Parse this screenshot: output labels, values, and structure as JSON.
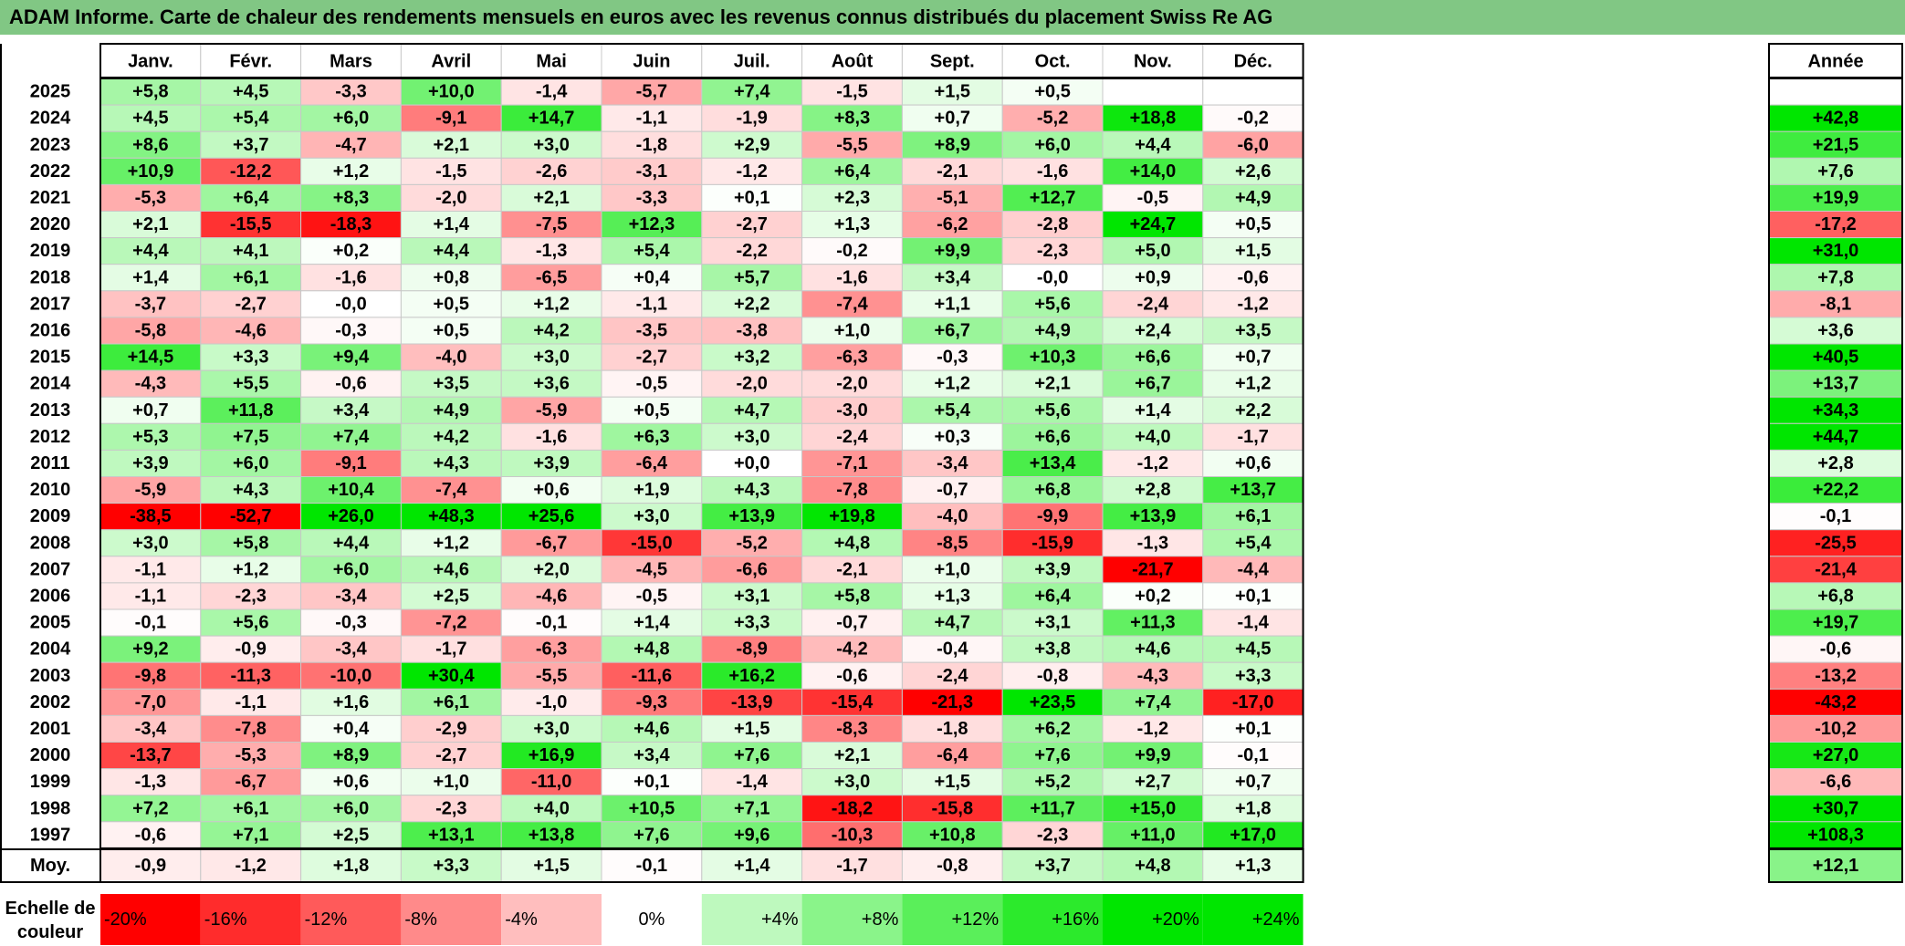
{
  "title": "ADAM Informe. Carte de chaleur des rendements mensuels en euros avec les revenus connus distribués du placement Swiss Re AG",
  "colors": {
    "title_bg": "#81c784",
    "negative_max": "#ff0000",
    "neutral": "#ffffff",
    "positive_max": "#00e000",
    "grid": "#c8c8c8",
    "border": "#000000"
  },
  "chart_data": {
    "type": "heatmap",
    "months": [
      "Janv.",
      "Févr.",
      "Mars",
      "Avril",
      "Mai",
      "Juin",
      "Juil.",
      "Août",
      "Sept.",
      "Oct.",
      "Nov.",
      "Déc."
    ],
    "year_header": "Année",
    "rows": [
      {
        "year": "2025",
        "values": [
          "+5,8",
          "+4,5",
          "-3,3",
          "+10,0",
          "-1,4",
          "-5,7",
          "+7,4",
          "-1,5",
          "+1,5",
          "+0,5",
          "",
          ""
        ],
        "annual": ""
      },
      {
        "year": "2024",
        "values": [
          "+4,5",
          "+5,4",
          "+6,0",
          "-9,1",
          "+14,7",
          "-1,1",
          "-1,9",
          "+8,3",
          "+0,7",
          "-5,2",
          "+18,8",
          "-0,2"
        ],
        "annual": "+42,8"
      },
      {
        "year": "2023",
        "values": [
          "+8,6",
          "+3,7",
          "-4,7",
          "+2,1",
          "+3,0",
          "-1,8",
          "+2,9",
          "-5,5",
          "+8,9",
          "+6,0",
          "+4,4",
          "-6,0"
        ],
        "annual": "+21,5"
      },
      {
        "year": "2022",
        "values": [
          "+10,9",
          "-12,2",
          "+1,2",
          "-1,5",
          "-2,6",
          "-3,1",
          "-1,2",
          "+6,4",
          "-2,1",
          "-1,6",
          "+14,0",
          "+2,6"
        ],
        "annual": "+7,6"
      },
      {
        "year": "2021",
        "values": [
          "-5,3",
          "+6,4",
          "+8,3",
          "-2,0",
          "+2,1",
          "-3,3",
          "+0,1",
          "+2,3",
          "-5,1",
          "+12,7",
          "-0,5",
          "+4,9"
        ],
        "annual": "+19,9"
      },
      {
        "year": "2020",
        "values": [
          "+2,1",
          "-15,5",
          "-18,3",
          "+1,4",
          "-7,5",
          "+12,3",
          "-2,7",
          "+1,3",
          "-6,2",
          "-2,8",
          "+24,7",
          "+0,5"
        ],
        "annual": "-17,2"
      },
      {
        "year": "2019",
        "values": [
          "+4,4",
          "+4,1",
          "+0,2",
          "+4,4",
          "-1,3",
          "+5,4",
          "-2,2",
          "-0,2",
          "+9,9",
          "-2,3",
          "+5,0",
          "+1,5"
        ],
        "annual": "+31,0"
      },
      {
        "year": "2018",
        "values": [
          "+1,4",
          "+6,1",
          "-1,6",
          "+0,8",
          "-6,5",
          "+0,4",
          "+5,7",
          "-1,6",
          "+3,4",
          "-0,0",
          "+0,9",
          "-0,6"
        ],
        "annual": "+7,8"
      },
      {
        "year": "2017",
        "values": [
          "-3,7",
          "-2,7",
          "-0,0",
          "+0,5",
          "+1,2",
          "-1,1",
          "+2,2",
          "-7,4",
          "+1,1",
          "+5,6",
          "-2,4",
          "-1,2"
        ],
        "annual": "-8,1"
      },
      {
        "year": "2016",
        "values": [
          "-5,8",
          "-4,6",
          "-0,3",
          "+0,5",
          "+4,2",
          "-3,5",
          "-3,8",
          "+1,0",
          "+6,7",
          "+4,9",
          "+2,4",
          "+3,5"
        ],
        "annual": "+3,6"
      },
      {
        "year": "2015",
        "values": [
          "+14,5",
          "+3,3",
          "+9,4",
          "-4,0",
          "+3,0",
          "-2,7",
          "+3,2",
          "-6,3",
          "-0,3",
          "+10,3",
          "+6,6",
          "+0,7"
        ],
        "annual": "+40,5"
      },
      {
        "year": "2014",
        "values": [
          "-4,3",
          "+5,5",
          "-0,6",
          "+3,5",
          "+3,6",
          "-0,5",
          "-2,0",
          "-2,0",
          "+1,2",
          "+2,1",
          "+6,7",
          "+1,2"
        ],
        "annual": "+13,7"
      },
      {
        "year": "2013",
        "values": [
          "+0,7",
          "+11,8",
          "+3,4",
          "+4,9",
          "-5,9",
          "+0,5",
          "+4,7",
          "-3,0",
          "+5,4",
          "+5,6",
          "+1,4",
          "+2,2"
        ],
        "annual": "+34,3"
      },
      {
        "year": "2012",
        "values": [
          "+5,3",
          "+7,5",
          "+7,4",
          "+4,2",
          "-1,6",
          "+6,3",
          "+3,0",
          "-2,4",
          "+0,3",
          "+6,6",
          "+4,0",
          "-1,7"
        ],
        "annual": "+44,7"
      },
      {
        "year": "2011",
        "values": [
          "+3,9",
          "+6,0",
          "-9,1",
          "+4,3",
          "+3,9",
          "-6,4",
          "+0,0",
          "-7,1",
          "-3,4",
          "+13,4",
          "-1,2",
          "+0,6"
        ],
        "annual": "+2,8"
      },
      {
        "year": "2010",
        "values": [
          "-5,9",
          "+4,3",
          "+10,4",
          "-7,4",
          "+0,6",
          "+1,9",
          "+4,3",
          "-7,8",
          "-0,7",
          "+6,8",
          "+2,8",
          "+13,7"
        ],
        "annual": "+22,2"
      },
      {
        "year": "2009",
        "values": [
          "-38,5",
          "-52,7",
          "+26,0",
          "+48,3",
          "+25,6",
          "+3,0",
          "+13,9",
          "+19,8",
          "-4,0",
          "-9,9",
          "+13,9",
          "+6,1"
        ],
        "annual": "-0,1"
      },
      {
        "year": "2008",
        "values": [
          "+3,0",
          "+5,8",
          "+4,4",
          "+1,2",
          "-6,7",
          "-15,0",
          "-5,2",
          "+4,8",
          "-8,5",
          "-15,9",
          "-1,3",
          "+5,4"
        ],
        "annual": "-25,5"
      },
      {
        "year": "2007",
        "values": [
          "-1,1",
          "+1,2",
          "+6,0",
          "+4,6",
          "+2,0",
          "-4,5",
          "-6,6",
          "-2,1",
          "+1,0",
          "+3,9",
          "-21,7",
          "-4,4"
        ],
        "annual": "-21,4"
      },
      {
        "year": "2006",
        "values": [
          "-1,1",
          "-2,3",
          "-3,4",
          "+2,5",
          "-4,6",
          "-0,5",
          "+3,1",
          "+5,8",
          "+1,3",
          "+6,4",
          "+0,2",
          "+0,1"
        ],
        "annual": "+6,8"
      },
      {
        "year": "2005",
        "values": [
          "-0,1",
          "+5,6",
          "-0,3",
          "-7,2",
          "-0,1",
          "+1,4",
          "+3,3",
          "-0,7",
          "+4,7",
          "+3,1",
          "+11,3",
          "-1,4"
        ],
        "annual": "+19,7"
      },
      {
        "year": "2004",
        "values": [
          "+9,2",
          "-0,9",
          "-3,4",
          "-1,7",
          "-6,3",
          "+4,8",
          "-8,9",
          "-4,2",
          "-0,4",
          "+3,8",
          "+4,6",
          "+4,5"
        ],
        "annual": "-0,6"
      },
      {
        "year": "2003",
        "values": [
          "-9,8",
          "-11,3",
          "-10,0",
          "+30,4",
          "-5,5",
          "-11,6",
          "+16,2",
          "-0,6",
          "-2,4",
          "-0,8",
          "-4,3",
          "+3,3"
        ],
        "annual": "-13,2"
      },
      {
        "year": "2002",
        "values": [
          "-7,0",
          "-1,1",
          "+1,6",
          "+6,1",
          "-1,0",
          "-9,3",
          "-13,9",
          "-15,4",
          "-21,3",
          "+23,5",
          "+7,4",
          "-17,0"
        ],
        "annual": "-43,2"
      },
      {
        "year": "2001",
        "values": [
          "-3,4",
          "-7,8",
          "+0,4",
          "-2,9",
          "+3,0",
          "+4,6",
          "+1,5",
          "-8,3",
          "-1,8",
          "+6,2",
          "-1,2",
          "+0,1"
        ],
        "annual": "-10,2"
      },
      {
        "year": "2000",
        "values": [
          "-13,7",
          "-5,3",
          "+8,9",
          "-2,7",
          "+16,9",
          "+3,4",
          "+7,6",
          "+2,1",
          "-6,4",
          "+7,6",
          "+9,9",
          "-0,1"
        ],
        "annual": "+27,0"
      },
      {
        "year": "1999",
        "values": [
          "-1,3",
          "-6,7",
          "+0,6",
          "+1,0",
          "-11,0",
          "+0,1",
          "-1,4",
          "+3,0",
          "+1,5",
          "+5,2",
          "+2,7",
          "+0,7"
        ],
        "annual": "-6,6"
      },
      {
        "year": "1998",
        "values": [
          "+7,2",
          "+6,1",
          "+6,0",
          "-2,3",
          "+4,0",
          "+10,5",
          "+7,1",
          "-18,2",
          "-15,8",
          "+11,7",
          "+15,0",
          "+1,8"
        ],
        "annual": "+30,7"
      },
      {
        "year": "1997",
        "values": [
          "-0,6",
          "+7,1",
          "+2,5",
          "+13,1",
          "+13,8",
          "+7,6",
          "+9,6",
          "-10,3",
          "+10,8",
          "-2,3",
          "+11,0",
          "+17,0"
        ],
        "annual": "+108,3"
      }
    ],
    "average": {
      "label": "Moy.",
      "values": [
        "-0,9",
        "-1,2",
        "+1,8",
        "+3,3",
        "+1,5",
        "-0,1",
        "+1,4",
        "-1,7",
        "-0,8",
        "+3,7",
        "+4,8",
        "+1,3"
      ],
      "annual": "+12,1"
    },
    "scale": {
      "label_line1": "Echelle de",
      "label_line2": "couleur",
      "steps": [
        {
          "label": "-20%",
          "value": -20
        },
        {
          "label": "-16%",
          "value": -16
        },
        {
          "label": "-12%",
          "value": -12
        },
        {
          "label": "-8%",
          "value": -8
        },
        {
          "label": "-4%",
          "value": -4
        },
        {
          "label": "0%",
          "value": 0
        },
        {
          "label": "+4%",
          "value": 4
        },
        {
          "label": "+8%",
          "value": 8
        },
        {
          "label": "+12%",
          "value": 12
        },
        {
          "label": "+16%",
          "value": 16
        },
        {
          "label": "+20%",
          "value": 20
        },
        {
          "label": "+24%",
          "value": 24
        }
      ]
    }
  }
}
